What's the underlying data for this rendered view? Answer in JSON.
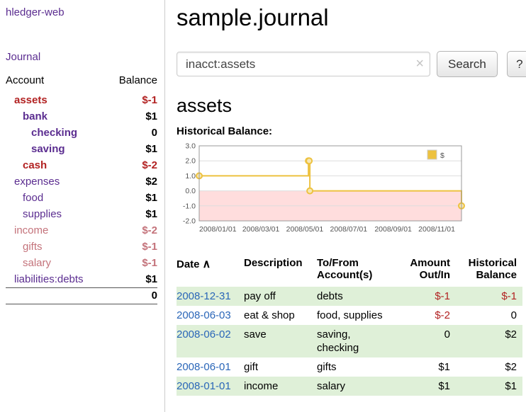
{
  "colors": {
    "purple": "#5b2d90",
    "red": "#b22222",
    "pink": "#c4737b",
    "blue": "#2a66b8",
    "green_row": "#dff0d8",
    "chart_line": "#edc240",
    "chart_point_fill": "#f7e7b3",
    "chart_neg_bg": "#ffdddd",
    "border": "#cccccc"
  },
  "app": {
    "title": "hledger-web"
  },
  "sidebar": {
    "journal_link": "Journal",
    "headers": {
      "account": "Account",
      "balance": "Balance"
    },
    "accounts": [
      {
        "name": "assets",
        "balance": "$-1",
        "level": 1,
        "bold": true,
        "name_color": "red",
        "balance_color": "red"
      },
      {
        "name": "bank",
        "balance": "$1",
        "level": 2,
        "bold": true,
        "name_color": "purple",
        "balance_color": "black"
      },
      {
        "name": "checking",
        "balance": "0",
        "level": 3,
        "bold": true,
        "name_color": "purple",
        "balance_color": "black"
      },
      {
        "name": "saving",
        "balance": "$1",
        "level": 3,
        "bold": true,
        "name_color": "purple",
        "balance_color": "black"
      },
      {
        "name": "cash",
        "balance": "$-2",
        "level": 2,
        "bold": true,
        "name_color": "red",
        "balance_color": "red"
      },
      {
        "name": "expenses",
        "balance": "$2",
        "level": 1,
        "bold": false,
        "name_color": "purple",
        "balance_color": "black"
      },
      {
        "name": "food",
        "balance": "$1",
        "level": 2,
        "bold": false,
        "name_color": "purple",
        "balance_color": "black"
      },
      {
        "name": "supplies",
        "balance": "$1",
        "level": 2,
        "bold": false,
        "name_color": "purple",
        "balance_color": "black"
      },
      {
        "name": "income",
        "balance": "$-2",
        "level": 1,
        "bold": false,
        "name_color": "pink",
        "balance_color": "pink"
      },
      {
        "name": "gifts",
        "balance": "$-1",
        "level": 2,
        "bold": false,
        "name_color": "pink",
        "balance_color": "pink"
      },
      {
        "name": "salary",
        "balance": "$-1",
        "level": 2,
        "bold": false,
        "name_color": "pink",
        "balance_color": "pink"
      },
      {
        "name": "liabilities:debts",
        "balance": "$1",
        "level": 1,
        "bold": false,
        "name_color": "purple",
        "balance_color": "black"
      }
    ],
    "total": "0"
  },
  "main": {
    "title": "sample.journal",
    "search": {
      "value": "inacct:assets",
      "clear_icon": "×",
      "button_label": "Search",
      "help_label": "?"
    },
    "section_title": "assets",
    "chart_heading": "Historical Balance:"
  },
  "chart_data": {
    "type": "line",
    "style": "step",
    "title": "Historical Balance",
    "legend": [
      {
        "label": "$",
        "color": "#edc240"
      }
    ],
    "x_range": [
      "2008-01-01",
      "2008-12-31"
    ],
    "ylim": [
      -2,
      3
    ],
    "yticks": [
      "3.0",
      "2.0",
      "1.0",
      "0.0",
      "-1.0",
      "-2.0"
    ],
    "xticks": [
      "2008/01/01",
      "2008/03/01",
      "2008/05/01",
      "2008/07/01",
      "2008/09/01",
      "2008/11/01"
    ],
    "series": [
      {
        "name": "$",
        "points": [
          {
            "x": "2008-01-01",
            "y": 1
          },
          {
            "x": "2008-06-01",
            "y": 2
          },
          {
            "x": "2008-06-02",
            "y": 2
          },
          {
            "x": "2008-06-03",
            "y": 0
          },
          {
            "x": "2008-12-31",
            "y": -1
          }
        ]
      }
    ],
    "negative_region_shaded": true,
    "grid": true,
    "legend_position": "top-right"
  },
  "register": {
    "headers": {
      "date": "Date",
      "sort_indicator": "∧",
      "description": "Description",
      "account_line1": "To/From",
      "account_line2": "Account(s)",
      "amount_line1": "Amount",
      "amount_line2": "Out/In",
      "balance_line1": "Historical",
      "balance_line2": "Balance"
    },
    "rows": [
      {
        "date": "2008-12-31",
        "description": "pay off",
        "accounts": "debts",
        "amount": "$-1",
        "amount_neg": true,
        "balance": "$-1",
        "balance_neg": true,
        "shaded": true
      },
      {
        "date": "2008-06-03",
        "description": "eat & shop",
        "accounts": "food, supplies",
        "amount": "$-2",
        "amount_neg": true,
        "balance": "0",
        "balance_neg": false,
        "shaded": false
      },
      {
        "date": "2008-06-02",
        "description": "save",
        "accounts": "saving, checking",
        "amount": "0",
        "amount_neg": false,
        "balance": "$2",
        "balance_neg": false,
        "shaded": true
      },
      {
        "date": "2008-06-01",
        "description": "gift",
        "accounts": "gifts",
        "amount": "$1",
        "amount_neg": false,
        "balance": "$2",
        "balance_neg": false,
        "shaded": false
      },
      {
        "date": "2008-01-01",
        "description": "income",
        "accounts": "salary",
        "amount": "$1",
        "amount_neg": false,
        "balance": "$1",
        "balance_neg": false,
        "shaded": true
      }
    ]
  }
}
